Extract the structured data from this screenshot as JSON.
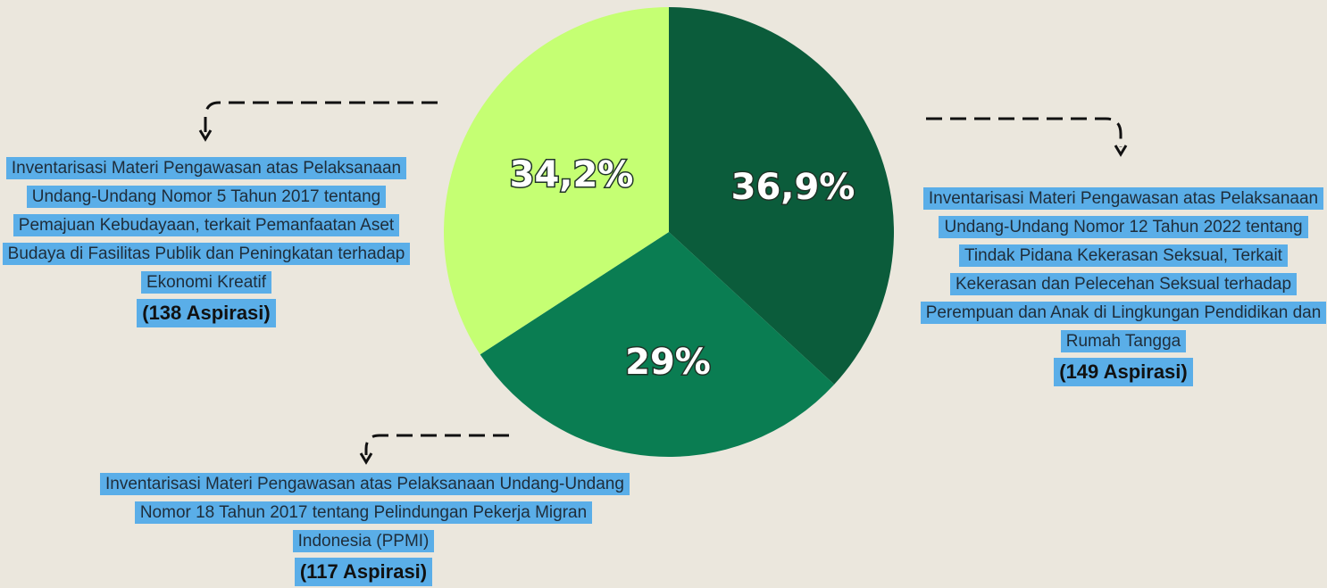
{
  "chart_data": {
    "type": "pie",
    "categories": [
      "Inventarisasi Materi Pengawasan atas Pelaksanaan Undang-Undang Nomor 12 Tahun 2022 tentang Tindak Pidana Kekerasan Seksual, Terkait Kekerasan dan Pelecehan Seksual terhadap Perempuan dan Anak di Lingkungan Pendidikan dan Rumah Tangga",
      "Inventarisasi Materi Pengawasan atas Pelaksanaan Undang-Undang Nomor 18 Tahun 2017 tentang Pelindungan Pekerja Migran Indonesia (PPMI)",
      "Inventarisasi Materi Pengawasan atas Pelaksanaan Undang-Undang Nomor 5 Tahun 2017 tentang Pemajuan Kebudayaan, terkait Pemanfaatan Aset Budaya di Fasilitas Publik dan Peningkatan terhadap Ekonomi Kreatif"
    ],
    "values": [
      36.9,
      29,
      34.2
    ],
    "value_labels": [
      "36,9%",
      "29%",
      "34,2%"
    ],
    "counts": [
      149,
      117,
      138
    ],
    "count_labels": [
      "(149 Aspirasi)",
      "(117 Aspirasi)",
      "(138 Aspirasi)"
    ],
    "colors": [
      "#0b5c3b",
      "#0a7d52",
      "#c5ff73"
    ]
  }
}
